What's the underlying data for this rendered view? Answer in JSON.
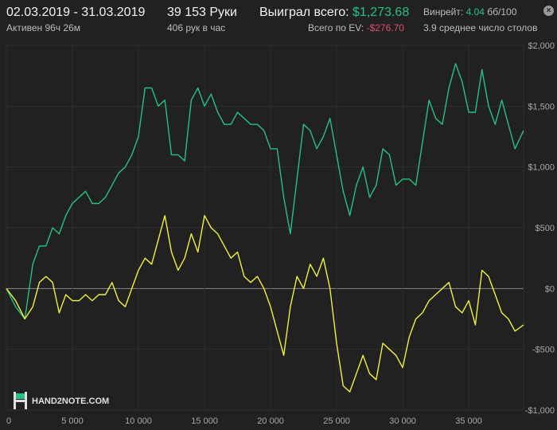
{
  "header": {
    "date_range": "02.03.2019 - 31.03.2019",
    "active_time": "Активен 96ч 26м",
    "hands_count": "39 153 Руки",
    "hands_per_hour": "406 рук в час",
    "won_label": "Выиграл всего:",
    "won_value": "$1,273.68",
    "ev_label": "Всего по EV:",
    "ev_value": "-$276.70",
    "winrate_label": "Винрейт:",
    "winrate_value": "4.04",
    "winrate_unit": "бб/100",
    "avg_tables": "3.9 среднее число столов",
    "close_glyph": "×"
  },
  "logo": {
    "text": "HAND2NOTE.COM",
    "icon": "h2n-logo-icon"
  },
  "colors": {
    "background": "#212121",
    "won": "#26c281",
    "ev": "#f1f13c",
    "grid": "#2e2e2e",
    "zero": "#8a8a8a"
  },
  "chart_data": {
    "type": "line",
    "xlim": [
      0,
      39153
    ],
    "ylim": [
      -1000,
      2000
    ],
    "xticks": [
      0,
      5000,
      10000,
      15000,
      20000,
      25000,
      30000,
      35000
    ],
    "xtick_labels": [
      "0",
      "5 000",
      "10 000",
      "15 000",
      "20 000",
      "25 000",
      "30 000",
      "35 000"
    ],
    "yticks": [
      2000,
      1500,
      1000,
      500,
      0,
      -500,
      -1000
    ],
    "ytick_labels": [
      "$2,000",
      "$1,500",
      "$1,000",
      "$500",
      "$0",
      "-$500",
      "-$1,000"
    ],
    "grid": true,
    "series": [
      {
        "color": "#26c281",
        "x": [
          0,
          700,
          1400,
          2000,
          2500,
          3000,
          3500,
          4000,
          4500,
          5000,
          5500,
          6000,
          6500,
          7000,
          7500,
          8000,
          8500,
          9000,
          9500,
          10000,
          10500,
          11000,
          11500,
          12000,
          12500,
          13000,
          13500,
          14000,
          14500,
          15000,
          15500,
          16000,
          16500,
          17000,
          17500,
          18000,
          18500,
          19000,
          19500,
          20000,
          20500,
          21000,
          21500,
          22000,
          22500,
          23000,
          23500,
          24000,
          24500,
          25000,
          25500,
          26000,
          26500,
          27000,
          27500,
          28000,
          28500,
          29000,
          29500,
          30000,
          30500,
          31000,
          31500,
          32000,
          32500,
          33000,
          33500,
          34000,
          34500,
          35000,
          35500,
          36000,
          36500,
          37000,
          37500,
          38000,
          38500,
          39153
        ],
        "values": [
          0,
          -150,
          -250,
          200,
          350,
          350,
          500,
          450,
          600,
          700,
          750,
          800,
          700,
          700,
          750,
          850,
          950,
          1000,
          1100,
          1250,
          1650,
          1650,
          1500,
          1550,
          1100,
          1100,
          1050,
          1550,
          1650,
          1500,
          1600,
          1450,
          1350,
          1350,
          1450,
          1400,
          1350,
          1350,
          1300,
          1150,
          1150,
          750,
          450,
          900,
          1350,
          1300,
          1150,
          1250,
          1400,
          1100,
          800,
          600,
          850,
          1000,
          750,
          850,
          1150,
          1100,
          850,
          900,
          900,
          850,
          1200,
          1550,
          1400,
          1350,
          1650,
          1850,
          1700,
          1450,
          1450,
          1800,
          1500,
          1350,
          1550,
          1350,
          1150,
          1300
        ]
      },
      {
        "color": "#f1f13c",
        "x": [
          0,
          700,
          1400,
          2000,
          2500,
          3000,
          3500,
          4000,
          4500,
          5000,
          5500,
          6000,
          6500,
          7000,
          7500,
          8000,
          8500,
          9000,
          9500,
          10000,
          10500,
          11000,
          11500,
          12000,
          12500,
          13000,
          13500,
          14000,
          14500,
          15000,
          15500,
          16000,
          16500,
          17000,
          17500,
          18000,
          18500,
          19000,
          19500,
          20000,
          20500,
          21000,
          21500,
          22000,
          22500,
          23000,
          23500,
          24000,
          24500,
          25000,
          25500,
          26000,
          26500,
          27000,
          27500,
          28000,
          28500,
          29000,
          29500,
          30000,
          30500,
          31000,
          31500,
          32000,
          32500,
          33000,
          33500,
          34000,
          34500,
          35000,
          35500,
          36000,
          36500,
          37000,
          37500,
          38000,
          38500,
          39153
        ],
        "values": [
          0,
          -100,
          -250,
          -150,
          50,
          100,
          50,
          -200,
          -50,
          -100,
          -100,
          -50,
          -100,
          -50,
          -50,
          50,
          -100,
          -150,
          0,
          150,
          250,
          200,
          400,
          600,
          300,
          150,
          250,
          450,
          300,
          600,
          500,
          450,
          350,
          250,
          300,
          100,
          50,
          100,
          0,
          -150,
          -350,
          -550,
          -150,
          100,
          0,
          200,
          100,
          250,
          0,
          -450,
          -800,
          -850,
          -700,
          -550,
          -700,
          -750,
          -450,
          -500,
          -550,
          -650,
          -400,
          -250,
          -200,
          -100,
          -50,
          0,
          50,
          -150,
          -200,
          -100,
          -300,
          150,
          100,
          -50,
          -200,
          -250,
          -350,
          -300
        ]
      }
    ]
  }
}
